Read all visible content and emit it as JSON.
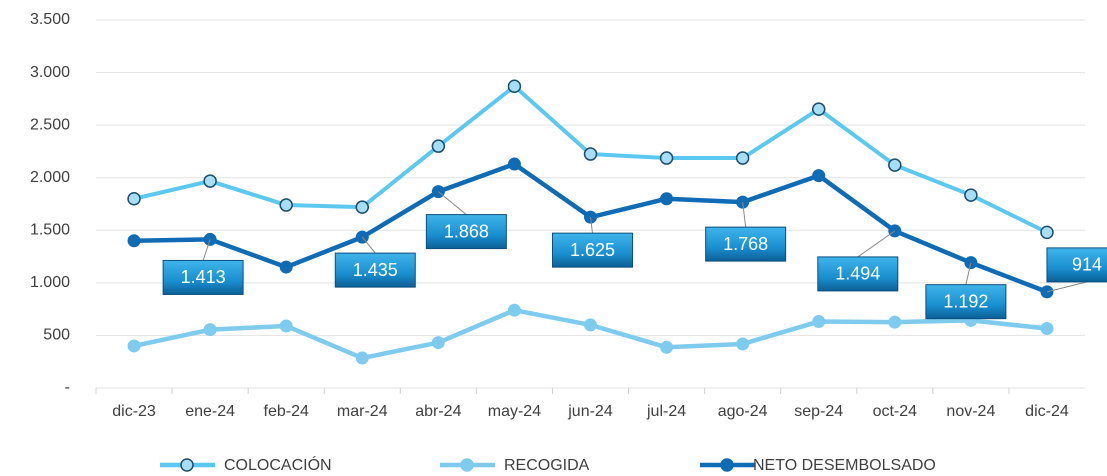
{
  "chart_data": {
    "type": "line",
    "categories": [
      "dic-23",
      "ene-24",
      "feb-24",
      "mar-24",
      "abr-24",
      "may-24",
      "jun-24",
      "jul-24",
      "ago-24",
      "sep-24",
      "oct-24",
      "nov-24",
      "dic-24"
    ],
    "series": [
      {
        "name": "COLOCACIÓN",
        "color": "#5bc8f0",
        "values": [
          1800,
          1968,
          1740,
          1720,
          2300,
          2870,
          2225,
          2187,
          2187,
          2652,
          2120,
          1835,
          1480
        ]
      },
      {
        "name": "RECOGIDA",
        "color": "#7ecbee",
        "values": [
          400,
          555,
          590,
          285,
          432,
          740,
          600,
          387,
          419,
          632,
          626,
          643,
          566
        ]
      },
      {
        "name": "NETO DESEMBOLSADO",
        "color": "#0f6bb4",
        "values": [
          1400,
          1413,
          1150,
          1435,
          1868,
          2130,
          1625,
          1800,
          1768,
          2020,
          1494,
          1192,
          914
        ],
        "value_labels": [
          null,
          "1.413",
          null,
          "1.435",
          "1.868",
          null,
          "1.625",
          null,
          "1.768",
          null,
          "1.494",
          "1.192",
          "914"
        ]
      }
    ],
    "ylim": [
      0,
      3500
    ],
    "yticks": [
      {
        "value": 0,
        "label": "-"
      },
      500,
      {
        "value": 1000,
        "label": "1.000"
      },
      {
        "value": 1500,
        "label": "1.500"
      },
      {
        "value": 2000,
        "label": "2.000"
      },
      {
        "value": 2500,
        "label": "2.500"
      },
      {
        "value": 3000,
        "label": "3.000"
      },
      {
        "value": 3500,
        "label": "3.500"
      }
    ],
    "grid": true,
    "legend": "bottom"
  }
}
